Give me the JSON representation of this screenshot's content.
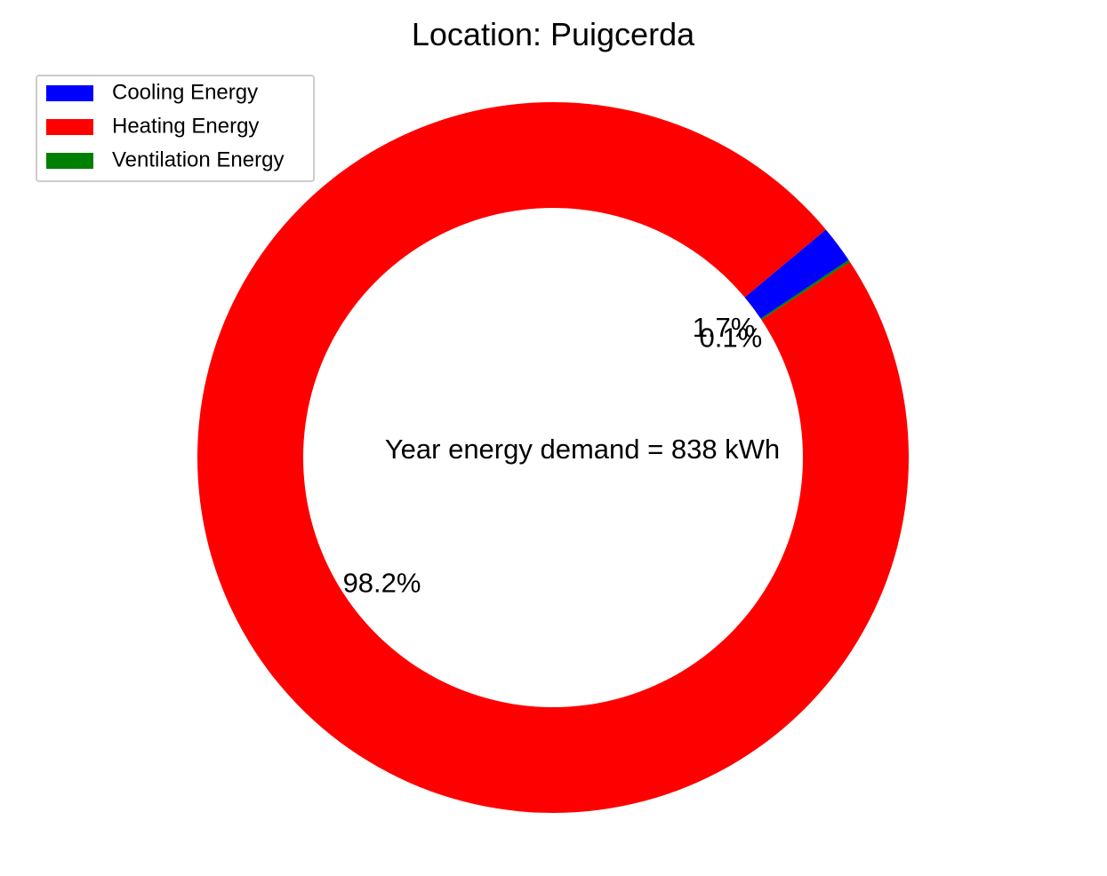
{
  "chart_data": {
    "type": "pie",
    "style": "donut",
    "title": "Location: Puigcerda",
    "center_label": "Year energy demand = 838 kWh",
    "legend_position": "upper-left",
    "slices": [
      {
        "label": "Cooling Energy",
        "value": 1.7,
        "pct_label": "1.7%",
        "color": "#0000ff"
      },
      {
        "label": "Heating Energy",
        "value": 98.2,
        "pct_label": "98.2%",
        "color": "#ff0000"
      },
      {
        "label": "Ventilation Energy",
        "value": 0.1,
        "pct_label": "0.1%",
        "color": "#008000"
      }
    ]
  }
}
